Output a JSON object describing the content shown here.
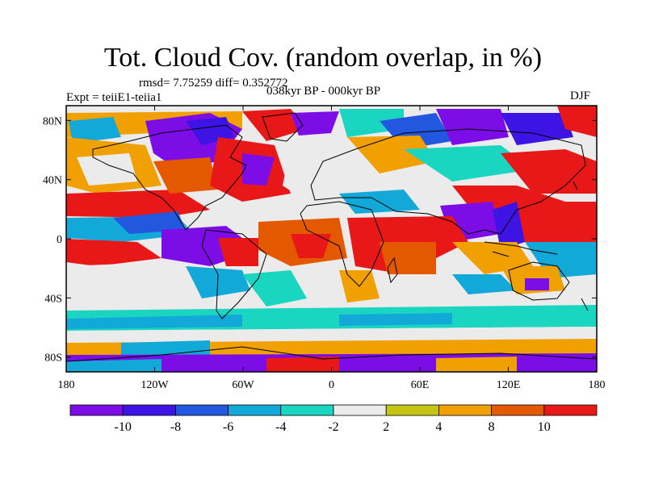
{
  "title": "Tot. Cloud Cov. (random overlap, in %)",
  "stats": "rmsd= 7.75259 diff= 0.352772",
  "experiment": "Expt = teiiE1-teiia1",
  "period": "038kyr BP - 000kyr BP",
  "season": "DJF",
  "axes": {
    "lat_ticks": [
      {
        "value": 80,
        "label": "80N"
      },
      {
        "value": 40,
        "label": "40N"
      },
      {
        "value": 0,
        "label": "0"
      },
      {
        "value": -40,
        "label": "40S"
      },
      {
        "value": -80,
        "label": "80S"
      }
    ],
    "lon_ticks": [
      {
        "value": -180,
        "label": "180"
      },
      {
        "value": -120,
        "label": "120W"
      },
      {
        "value": -60,
        "label": "60W"
      },
      {
        "value": 0,
        "label": "0"
      },
      {
        "value": 60,
        "label": "60E"
      },
      {
        "value": 120,
        "label": "120E"
      },
      {
        "value": 180,
        "label": "180"
      }
    ],
    "lat_range": [
      -90,
      90
    ],
    "lon_range": [
      -180,
      180
    ]
  },
  "colorbar": {
    "levels": [
      -10,
      -8,
      -6,
      -4,
      -2,
      2,
      4,
      8,
      10
    ],
    "labels": [
      "-10",
      "-8",
      "-6",
      "-4",
      "-2",
      "2",
      "4",
      "8",
      "10"
    ],
    "colors": [
      "#7d0de7",
      "#3d14e3",
      "#2258e0",
      "#12a8d8",
      "#1ad6c0",
      "#ebebeb",
      "#c4c414",
      "#f0a000",
      "#e45800",
      "#e81818"
    ]
  }
}
